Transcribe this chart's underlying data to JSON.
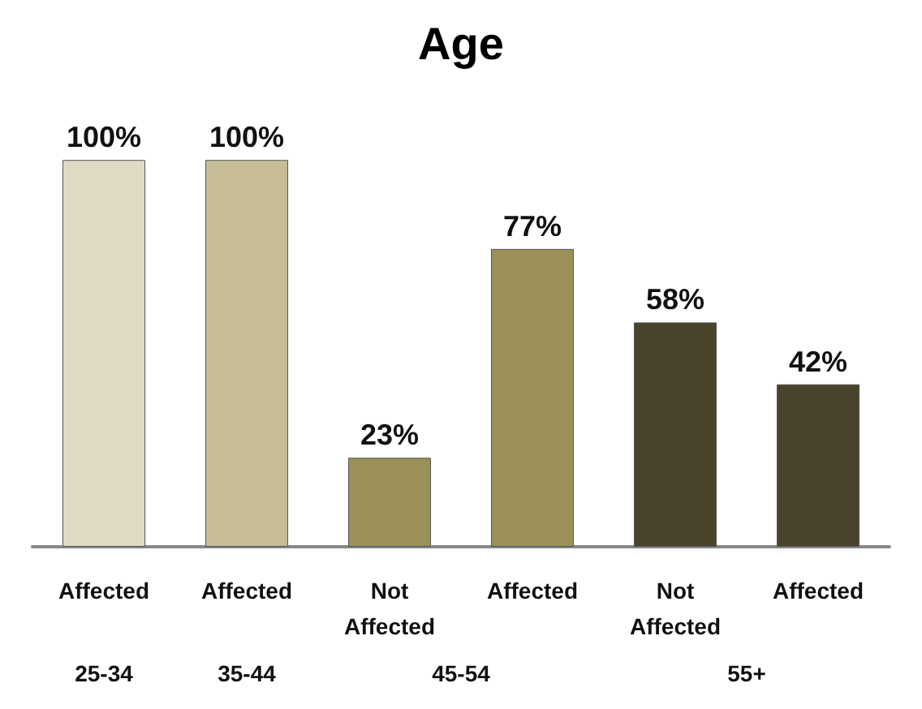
{
  "chart_data": {
    "type": "bar",
    "title": "Age",
    "categories": [
      "Affected",
      "Affected",
      "Not Affected",
      "Affected",
      "Not Affected",
      "Affected"
    ],
    "values": [
      100,
      100,
      23,
      77,
      58,
      42
    ],
    "colors": [
      "#dfdac3",
      "#c6bd97",
      "#9a9058",
      "#9a9058",
      "#4a432c",
      "#4a432c"
    ],
    "value_labels": [
      "100%",
      "100%",
      "23%",
      "77%",
      "58%",
      "42%"
    ],
    "annotations": [
      "25-34",
      "35-44",
      "45-54",
      "55+"
    ]
  }
}
